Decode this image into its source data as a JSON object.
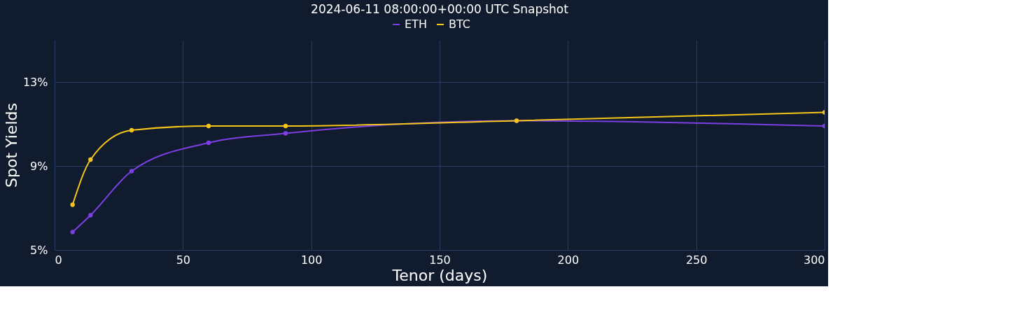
{
  "chart_data": {
    "type": "line",
    "title": "2024-06-11 08:00:00+00:00 UTC Snapshot",
    "xlabel": "Tenor (days)",
    "ylabel": "Spot Yields",
    "x": [
      7,
      14,
      30,
      60,
      90,
      180,
      300
    ],
    "series": [
      {
        "name": "ETH",
        "color": "#7b3fe4",
        "values": [
          5.85,
          6.65,
          8.75,
          10.1,
          10.55,
          11.15,
          10.9
        ]
      },
      {
        "name": "BTC",
        "color": "#f5c518",
        "values": [
          7.15,
          9.3,
          10.7,
          10.9,
          10.9,
          11.15,
          11.55
        ]
      }
    ],
    "xlim": [
      0,
      300
    ],
    "xticks": [
      0,
      50,
      100,
      150,
      200,
      250,
      300
    ],
    "ylim": [
      5,
      15
    ],
    "yticks": [
      {
        "value": 5,
        "label": "5%"
      },
      {
        "value": 9,
        "label": "9%"
      },
      {
        "value": 13,
        "label": "13%"
      }
    ],
    "grid": true,
    "legend": "top",
    "marker": "circle",
    "line_style": "solid"
  }
}
